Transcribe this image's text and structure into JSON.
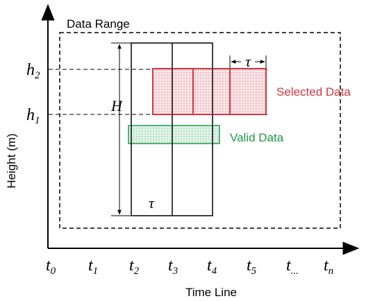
{
  "axes": {
    "y_label": "Height (m)",
    "x_label": "Time Line"
  },
  "data_range_label": "Data Range",
  "time_ticks": [
    {
      "base": "t",
      "sub": "0"
    },
    {
      "base": "t",
      "sub": "1"
    },
    {
      "base": "t",
      "sub": "2"
    },
    {
      "base": "t",
      "sub": "3"
    },
    {
      "base": "t",
      "sub": "4"
    },
    {
      "base": "t",
      "sub": "5"
    },
    {
      "base": "t",
      "sub": "..."
    },
    {
      "base": "t",
      "sub": "n"
    }
  ],
  "height_marks": [
    {
      "base": "h",
      "sub": "2"
    },
    {
      "base": "h",
      "sub": "1"
    }
  ],
  "window_height_label": "H",
  "window_width_label": "τ",
  "selected_width_label": "τ",
  "selected_label": "Selected Data",
  "valid_label": "Valid Data"
}
